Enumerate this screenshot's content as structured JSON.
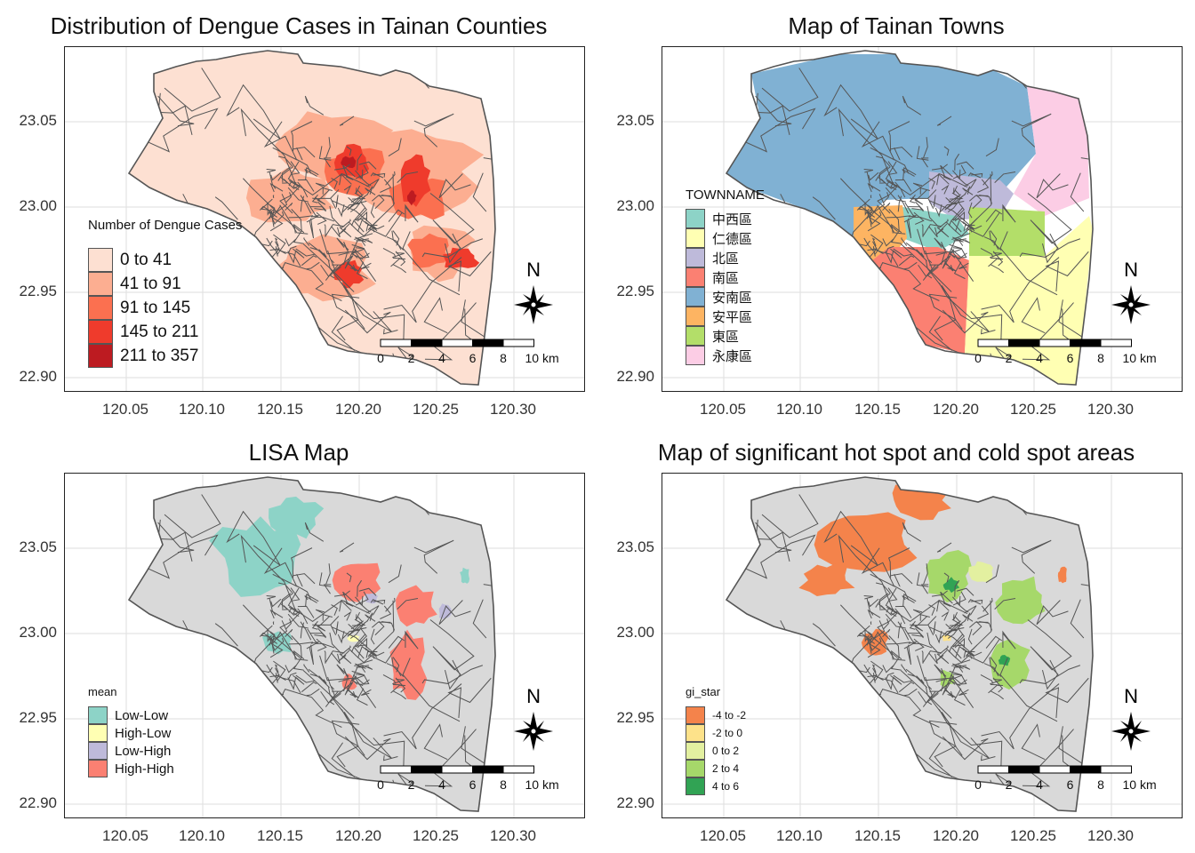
{
  "panels": [
    {
      "title": "Distribution of Dengue Cases in Tainan Counties",
      "legend": {
        "title": "Number of Dengue Cases",
        "items": [
          {
            "label": "0 to 41",
            "color": "#fde0d2"
          },
          {
            "label": "41 to 91",
            "color": "#fcae91"
          },
          {
            "label": "91 to 145",
            "color": "#fb7050"
          },
          {
            "label": "145 to 211",
            "color": "#ef3b2c"
          },
          {
            "label": "211 to 357",
            "color": "#bd1b21"
          }
        ]
      }
    },
    {
      "title": "Map of Tainan Towns",
      "legend": {
        "title": "TOWNNAME",
        "items": [
          {
            "label": "中西區",
            "color": "#8dd3c7"
          },
          {
            "label": "仁德區",
            "color": "#ffffb3"
          },
          {
            "label": "北區",
            "color": "#bebada"
          },
          {
            "label": "南區",
            "color": "#fb8072"
          },
          {
            "label": "安南區",
            "color": "#80b1d3"
          },
          {
            "label": "安平區",
            "color": "#fdb462"
          },
          {
            "label": "東區",
            "color": "#b3de69"
          },
          {
            "label": "永康區",
            "color": "#fccde5"
          }
        ]
      }
    },
    {
      "title": "LISA Map",
      "legend": {
        "title": "mean",
        "items": [
          {
            "label": "Low-Low",
            "color": "#8dd3c7"
          },
          {
            "label": "High-Low",
            "color": "#ffffb3"
          },
          {
            "label": "Low-High",
            "color": "#bebada"
          },
          {
            "label": "High-High",
            "color": "#fb8072"
          }
        ]
      }
    },
    {
      "title": "Map of significant hot spot and cold spot areas",
      "legend": {
        "title": "gi_star",
        "items": [
          {
            "label": "-4 to -2",
            "color": "#f4834b"
          },
          {
            "label": "-2 to 0",
            "color": "#fde28a"
          },
          {
            "label": "0 to 2",
            "color": "#e3f0a0"
          },
          {
            "label": "2 to 4",
            "color": "#a6d86a"
          },
          {
            "label": "4 to 6",
            "color": "#31a354"
          }
        ]
      }
    }
  ],
  "axes": {
    "y_ticks": [
      "23.05",
      "23.00",
      "22.95",
      "22.90"
    ],
    "x_ticks": [
      "120.05",
      "120.10",
      "120.15",
      "120.20",
      "120.25",
      "120.30"
    ]
  },
  "north_label": "N",
  "scalebar": {
    "labels": [
      "0",
      "2",
      "4",
      "6",
      "8",
      "10 km"
    ]
  },
  "base_color": "#d9d9d9",
  "border_color": "#555555"
}
